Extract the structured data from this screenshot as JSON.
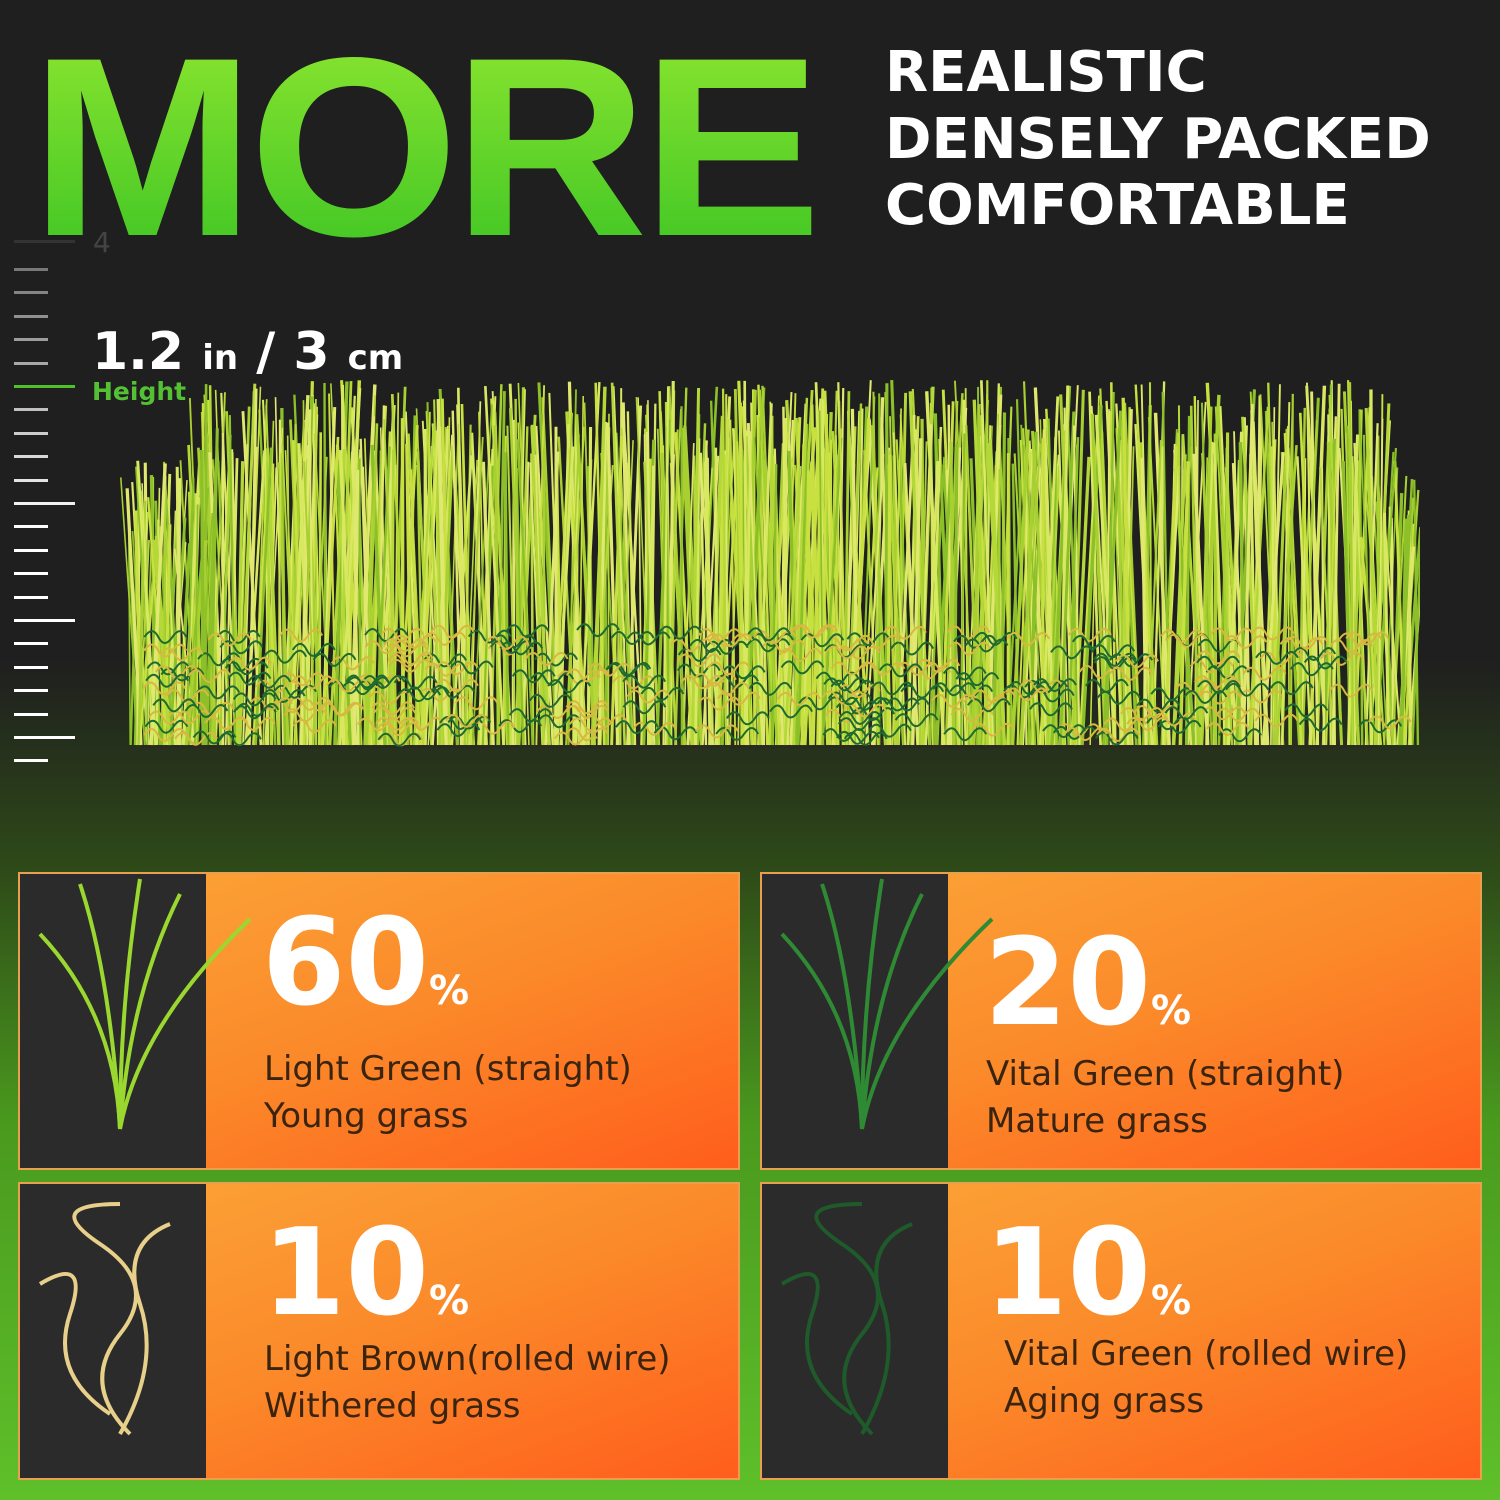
{
  "headline": "MORE",
  "features": [
    "REALISTIC",
    "DENSELY PACKED",
    "COMFORTABLE"
  ],
  "ruler": {
    "number": "4"
  },
  "height": {
    "value_in": "1.2",
    "unit_in": "in",
    "sep": "/",
    "value_cm": "3",
    "unit_cm": "cm",
    "label": "Height"
  },
  "colors": {
    "accent_green": "#4fc12a",
    "card_orange": "#fb8a2a"
  },
  "cards": [
    {
      "percent": "60",
      "sign": "%",
      "line1": "Light  Green (straight)",
      "line2": "Young grass",
      "icon": "light-green-straight-blade"
    },
    {
      "percent": "20",
      "sign": "%",
      "line1": "Vital Green (straight)",
      "line2": "Mature grass",
      "icon": "vital-green-straight-blade"
    },
    {
      "percent": "10",
      "sign": "%",
      "line1": "Light Brown(rolled wire)",
      "line2": "Withered grass",
      "icon": "light-brown-curled-blade"
    },
    {
      "percent": "10",
      "sign": "%",
      "line1": "Vital Green (rolled wire)",
      "line2": "Aging grass",
      "icon": "vital-green-curled-blade"
    }
  ]
}
